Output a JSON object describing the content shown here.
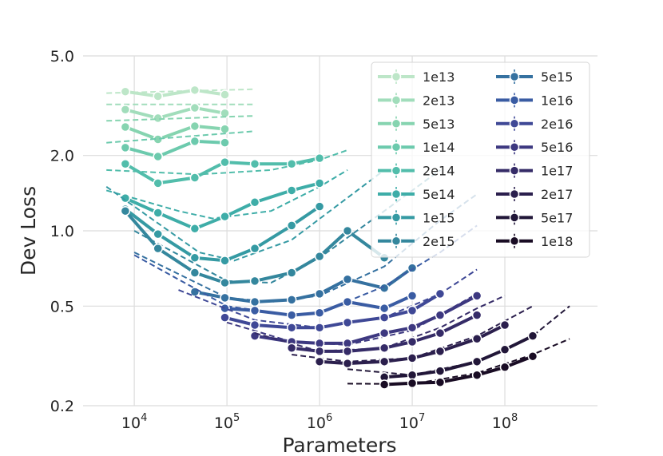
{
  "chart_data": {
    "type": "line",
    "title": "",
    "xlabel": "Parameters",
    "ylabel": "Dev Loss",
    "xscale": "log",
    "yscale": "log",
    "xlim": [
      2800,
      1000000000
    ],
    "ylim": [
      0.2,
      5.0
    ],
    "xticks": [
      {
        "value": 10000,
        "base": "10",
        "exp": "4"
      },
      {
        "value": 100000,
        "base": "10",
        "exp": "5"
      },
      {
        "value": 1000000,
        "base": "10",
        "exp": "6"
      },
      {
        "value": 10000000,
        "base": "10",
        "exp": "7"
      },
      {
        "value": 100000000,
        "base": "10",
        "exp": "8"
      }
    ],
    "yticks": [
      {
        "value": 0.2,
        "label": "0.2"
      },
      {
        "value": 0.5,
        "label": "0.5"
      },
      {
        "value": 1.0,
        "label": "1.0"
      },
      {
        "value": 2.0,
        "label": "2.0"
      },
      {
        "value": 5.0,
        "label": "5.0"
      }
    ],
    "grid": true,
    "legend_position": "top-right",
    "legend_columns": 2,
    "series": [
      {
        "name": "1e13",
        "color": "#bde6c8",
        "x": [
          8000,
          18000,
          45000,
          95000
        ],
        "y": [
          3.6,
          3.45,
          3.65,
          3.5
        ],
        "fit_x": [
          5000,
          200000
        ],
        "fit_y": [
          3.55,
          3.68
        ]
      },
      {
        "name": "2e13",
        "color": "#a1ddbb",
        "x": [
          8000,
          18000,
          45000,
          95000
        ],
        "y": [
          3.05,
          2.82,
          3.1,
          2.95
        ],
        "fit_x": [
          5000,
          200000
        ],
        "fit_y": [
          3.2,
          3.2
        ]
      },
      {
        "name": "5e13",
        "color": "#86d4b0",
        "x": [
          8000,
          18000,
          45000,
          95000
        ],
        "y": [
          2.6,
          2.32,
          2.62,
          2.55
        ],
        "fit_x": [
          5000,
          200000
        ],
        "fit_y": [
          2.75,
          2.88
        ]
      },
      {
        "name": "1e14",
        "color": "#6ccaad",
        "x": [
          8000,
          18000,
          45000,
          95000
        ],
        "y": [
          2.15,
          1.98,
          2.28,
          2.25
        ],
        "fit_x": [
          5000,
          200000
        ],
        "fit_y": [
          2.25,
          2.5
        ]
      },
      {
        "name": "2e14",
        "color": "#52bdab",
        "x": [
          8000,
          18000,
          45000,
          95000,
          200000,
          500000,
          1000000
        ],
        "y": [
          1.85,
          1.55,
          1.63,
          1.88,
          1.85,
          1.85,
          1.95
        ],
        "fit_x": [
          5000,
          50000,
          300000,
          1000000,
          2000000
        ],
        "fit_y": [
          1.75,
          1.68,
          1.75,
          1.92,
          2.1
        ]
      },
      {
        "name": "5e14",
        "color": "#3eada8",
        "x": [
          8000,
          18000,
          45000,
          95000,
          200000,
          500000,
          1000000
        ],
        "y": [
          1.35,
          1.18,
          1.02,
          1.14,
          1.3,
          1.45,
          1.55
        ],
        "fit_x": [
          5000,
          30000,
          70000,
          300000,
          1000000,
          2000000
        ],
        "fit_y": [
          1.45,
          1.2,
          1.12,
          1.2,
          1.5,
          1.75
        ]
      },
      {
        "name": "1e15",
        "color": "#359aa3",
        "x": [
          8000,
          18000,
          45000,
          95000,
          200000,
          500000,
          1000000
        ],
        "y": [
          1.22,
          0.97,
          0.78,
          0.76,
          0.85,
          1.05,
          1.25
        ],
        "fit_x": [
          5000,
          50000,
          120000,
          500000,
          1500000,
          5000000
        ],
        "fit_y": [
          1.5,
          0.82,
          0.76,
          0.92,
          1.25,
          1.75
        ]
      },
      {
        "name": "2e15",
        "color": "#34879d",
        "x": [
          8000,
          18000,
          45000,
          95000,
          200000,
          500000,
          1000000,
          2000000,
          5000000
        ],
        "y": [
          1.2,
          0.85,
          0.68,
          0.62,
          0.63,
          0.68,
          0.79,
          1.0,
          0.78
        ],
        "fit_x": [
          10000,
          100000,
          300000,
          1000000,
          5000000,
          20000000
        ],
        "fit_y": [
          1.0,
          0.63,
          0.62,
          0.78,
          1.2,
          1.75
        ]
      },
      {
        "name": "5e15",
        "color": "#3571a0",
        "x": [
          45000,
          95000,
          200000,
          500000,
          1000000,
          2000000,
          5000000,
          10000000
        ],
        "y": [
          0.57,
          0.54,
          0.52,
          0.53,
          0.56,
          0.64,
          0.59,
          0.71
        ],
        "fit_x": [
          10000,
          100000,
          300000,
          1000000,
          5000000,
          20000000,
          50000000
        ],
        "fit_y": [
          0.82,
          0.54,
          0.52,
          0.55,
          0.72,
          1.1,
          1.4
        ]
      },
      {
        "name": "1e16",
        "color": "#3a5ca3",
        "x": [
          95000,
          200000,
          500000,
          1000000,
          2000000,
          5000000,
          10000000
        ],
        "y": [
          0.49,
          0.48,
          0.46,
          0.47,
          0.52,
          0.49,
          0.55
        ],
        "fit_x": [
          10000,
          100000,
          500000,
          1000000,
          5000000,
          20000000,
          50000000
        ],
        "fit_y": [
          0.8,
          0.5,
          0.46,
          0.47,
          0.6,
          0.82,
          1.05
        ]
      },
      {
        "name": "2e16",
        "color": "#3f4896",
        "x": [
          95000,
          200000,
          500000,
          1000000,
          2000000,
          5000000,
          10000000,
          20000000
        ],
        "y": [
          0.45,
          0.42,
          0.41,
          0.41,
          0.43,
          0.45,
          0.48,
          0.56
        ],
        "fit_x": [
          30000,
          200000,
          1000000,
          5000000,
          20000000,
          50000000
        ],
        "fit_y": [
          0.58,
          0.44,
          0.41,
          0.45,
          0.56,
          0.7
        ]
      },
      {
        "name": "5e16",
        "color": "#3d3880",
        "x": [
          200000,
          500000,
          1000000,
          2000000,
          5000000,
          10000000,
          20000000,
          50000000
        ],
        "y": [
          0.38,
          0.36,
          0.355,
          0.355,
          0.39,
          0.41,
          0.46,
          0.55
        ],
        "fit_x": [
          100000,
          500000,
          2000000,
          10000000,
          50000000
        ],
        "fit_y": [
          0.43,
          0.36,
          0.35,
          0.4,
          0.56
        ]
      },
      {
        "name": "1e17",
        "color": "#352b67",
        "x": [
          500000,
          1000000,
          2000000,
          5000000,
          10000000,
          20000000,
          50000000
        ],
        "y": [
          0.34,
          0.33,
          0.33,
          0.34,
          0.36,
          0.39,
          0.46
        ],
        "fit_x": [
          200000,
          1000000,
          5000000,
          20000000,
          50000000,
          100000000
        ],
        "fit_y": [
          0.39,
          0.33,
          0.34,
          0.41,
          0.49,
          0.55
        ]
      },
      {
        "name": "2e17",
        "color": "#2b1f4d",
        "x": [
          1000000,
          2000000,
          5000000,
          10000000,
          20000000,
          50000000,
          100000000
        ],
        "y": [
          0.3,
          0.295,
          0.3,
          0.31,
          0.33,
          0.37,
          0.42
        ],
        "fit_x": [
          500000,
          2000000,
          10000000,
          50000000,
          200000000
        ],
        "fit_y": [
          0.32,
          0.3,
          0.31,
          0.38,
          0.5
        ]
      },
      {
        "name": "5e17",
        "color": "#211638",
        "x": [
          5000000,
          10000000,
          20000000,
          50000000,
          100000000,
          200000000
        ],
        "y": [
          0.26,
          0.265,
          0.275,
          0.3,
          0.335,
          0.38
        ],
        "fit_x": [
          2000000,
          10000000,
          50000000,
          200000000,
          500000000
        ],
        "fit_y": [
          0.28,
          0.265,
          0.3,
          0.38,
          0.5
        ]
      },
      {
        "name": "1e18",
        "color": "#190c24",
        "x": [
          5000000,
          10000000,
          20000000,
          50000000,
          100000000,
          200000000
        ],
        "y": [
          0.243,
          0.246,
          0.248,
          0.265,
          0.285,
          0.315
        ],
        "fit_x": [
          2000000,
          10000000,
          50000000,
          200000000,
          500000000
        ],
        "fit_y": [
          0.245,
          0.244,
          0.27,
          0.32,
          0.37
        ]
      }
    ]
  }
}
